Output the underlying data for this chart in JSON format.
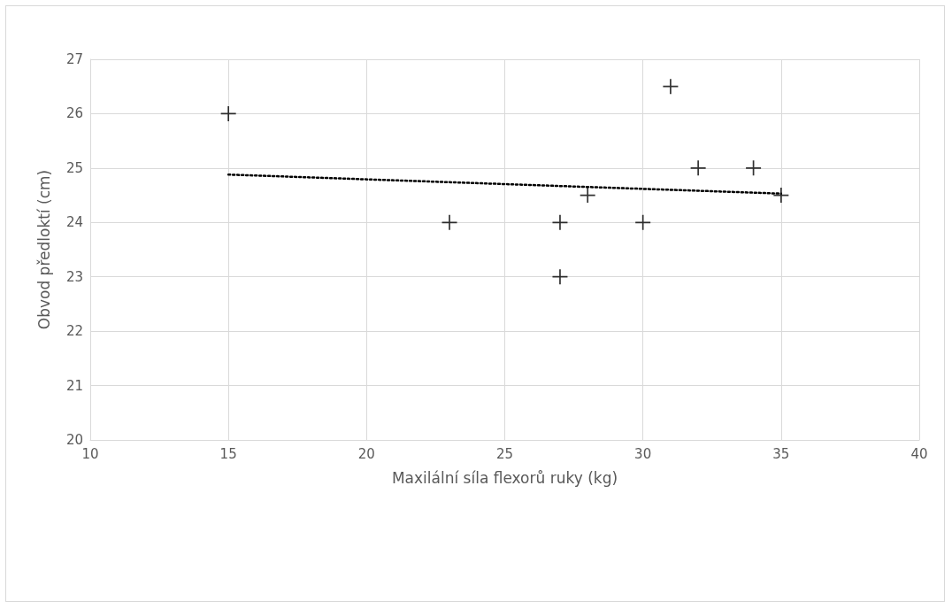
{
  "chart_data": {
    "type": "scatter",
    "xlabel": "Maxilální síla flexorů ruky (kg)",
    "ylabel": "Obvod předloktí (cm)",
    "xlim": [
      10,
      40
    ],
    "xticks": [
      10,
      15,
      20,
      25,
      30,
      35,
      40
    ],
    "ylim": [
      20,
      27
    ],
    "yticks": [
      20,
      21,
      22,
      23,
      24,
      25,
      26,
      27
    ],
    "grid": true,
    "series": [
      {
        "marker": "cross",
        "color": "#000000",
        "x": [
          15,
          23,
          27,
          27,
          28,
          30,
          31,
          32,
          34,
          35
        ],
        "values": [
          26,
          24,
          24,
          23,
          24.5,
          24,
          26.5,
          25,
          25,
          24.5
        ]
      },
      {
        "type": "line",
        "marker": "none",
        "line_style": "dotted",
        "color": "#000000",
        "x": [
          15,
          35
        ],
        "values": [
          24.88,
          24.53
        ]
      }
    ]
  }
}
